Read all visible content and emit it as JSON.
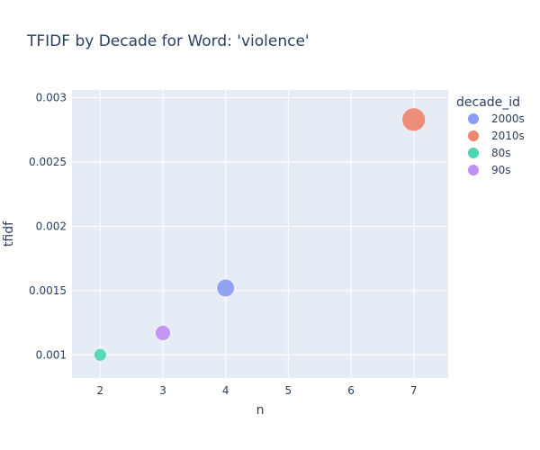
{
  "chart_data": {
    "type": "scatter",
    "title": "TFIDF by Decade for Word: 'violence'",
    "xlabel": "n",
    "ylabel": "tfidf",
    "xlim": [
      1.55,
      7.55
    ],
    "ylim": [
      0.00082,
      0.00306
    ],
    "xticks": [
      2,
      3,
      4,
      5,
      6,
      7
    ],
    "xtick_labels": [
      "2",
      "3",
      "4",
      "5",
      "6",
      "7"
    ],
    "yticks": [
      0.001,
      0.0015,
      0.002,
      0.0025,
      0.003
    ],
    "ytick_labels": [
      "0.001",
      "0.0015",
      "0.002",
      "0.0025",
      "0.003"
    ],
    "grid": true,
    "legend_title": "decade_id",
    "legend_position": "right",
    "series": [
      {
        "name": "2000s",
        "color": "#8b9bf6",
        "points": [
          {
            "x": 4,
            "y": 0.00152,
            "size": 4
          }
        ]
      },
      {
        "name": "2010s",
        "color": "#ef846f",
        "points": [
          {
            "x": 7,
            "y": 0.00283,
            "size": 7
          }
        ]
      },
      {
        "name": "80s",
        "color": "#4bd6b0",
        "points": [
          {
            "x": 2,
            "y": 0.001,
            "size": 2
          }
        ]
      },
      {
        "name": "90s",
        "color": "#c08ef5",
        "points": [
          {
            "x": 3,
            "y": 0.00117,
            "size": 3
          }
        ]
      }
    ]
  }
}
